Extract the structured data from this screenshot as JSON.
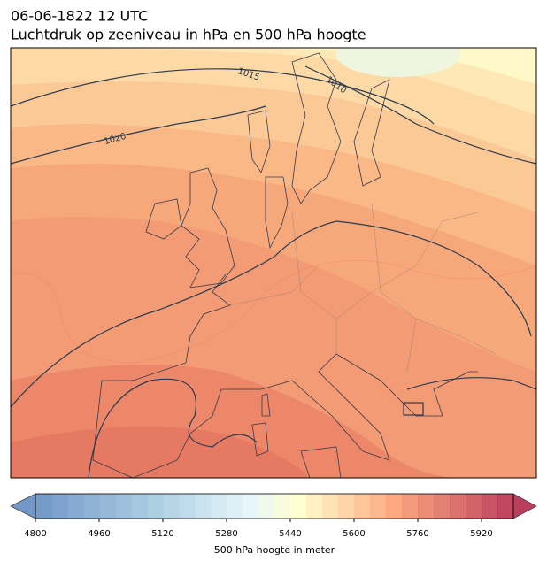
{
  "title": [
    "06-06-1822 12 UTC",
    "Luchtdruk op zeeniveau in hPa en 500 hPa hoogte"
  ],
  "isobar_labels": [
    1015,
    1010,
    1020
  ],
  "colorbar": {
    "label": "500 hPa hoogte in meter",
    "lim": [
      4800,
      6000
    ],
    "step": 40,
    "ticks": [
      4800,
      4960,
      5120,
      5280,
      5440,
      5600,
      5760,
      5920
    ]
  }
}
